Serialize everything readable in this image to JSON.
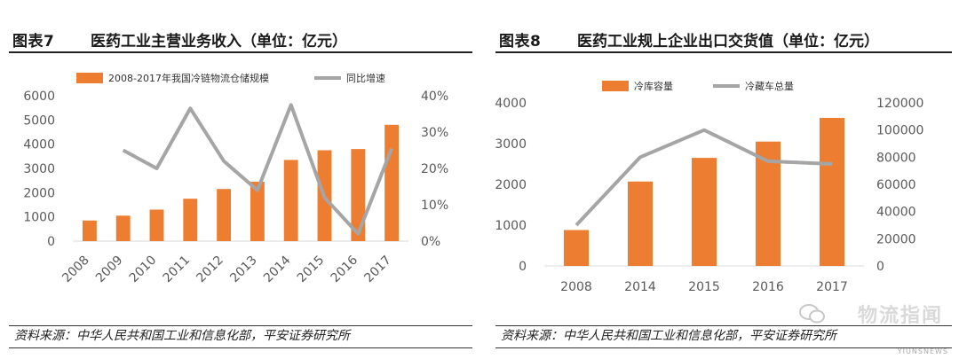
{
  "left": {
    "fig_num": "图表7",
    "title": "医药工业主营业务收入（单位：亿元）",
    "source": "资料来源：中华人民共和国工业和信息化部，平安证券研究所"
  },
  "right": {
    "fig_num": "图表8",
    "title": "医药工业规上企业出口交货值（单位：亿元）",
    "source": "资料来源：中华人民共和国工业和信息化部，平安证券研究所"
  },
  "watermark": {
    "text": "物流指闻",
    "sub": "YIUNSNEWS",
    "icon": "wechat-icon"
  },
  "colors": {
    "bar": "#ED7D31",
    "line": "#A5A5A5",
    "axis_text": "#595959"
  },
  "chart_data": [
    {
      "type": "bar",
      "categories": [
        "2008",
        "2009",
        "2010",
        "2011",
        "2012",
        "2013",
        "2014",
        "2015",
        "2016",
        "2017"
      ],
      "series": [
        {
          "name": "2008-2017年我国冷链物流仓储规模",
          "kind": "bar",
          "axis": "left",
          "values": [
            850,
            1050,
            1300,
            1750,
            2150,
            2450,
            3350,
            3750,
            3800,
            4800
          ]
        },
        {
          "name": "同比增速",
          "kind": "line",
          "axis": "right",
          "values": [
            null,
            25,
            20,
            36.5,
            22,
            14,
            37.5,
            12,
            2,
            25.5
          ]
        }
      ],
      "ylim": [
        0,
        6000
      ],
      "yticks": [
        "0",
        "1000",
        "2000",
        "3000",
        "4000",
        "5000",
        "6000"
      ],
      "y2lim": [
        0,
        40
      ],
      "y2ticks": [
        "0%",
        "10%",
        "20%",
        "30%",
        "40%"
      ],
      "legend_position": "top",
      "grid": false
    },
    {
      "type": "bar",
      "categories": [
        "2008",
        "2014",
        "2015",
        "2016",
        "2017"
      ],
      "series": [
        {
          "name": "冷库容量",
          "kind": "bar",
          "axis": "left",
          "values": [
            880,
            2070,
            2650,
            3050,
            3630
          ]
        },
        {
          "name": "冷藏车总量",
          "kind": "line",
          "axis": "right",
          "values": [
            30000,
            80000,
            100000,
            77000,
            75000
          ]
        }
      ],
      "ylim": [
        0,
        4000
      ],
      "yticks": [
        "0",
        "1000",
        "2000",
        "3000",
        "4000"
      ],
      "y2lim": [
        0,
        120000
      ],
      "y2ticks": [
        "0",
        "20000",
        "40000",
        "60000",
        "80000",
        "100000",
        "120000"
      ],
      "legend_position": "top",
      "grid": false
    }
  ]
}
